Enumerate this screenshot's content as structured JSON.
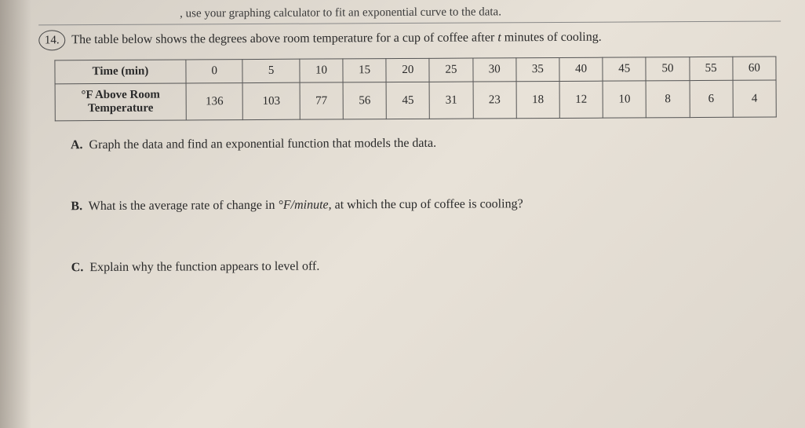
{
  "top_fragment": ", use your graphing calculator to fit an exponential curve to the data.",
  "question": {
    "number": "14.",
    "text_before_it": "The table below shows the degrees above room temperature for a cup of coffee after ",
    "italic_var": "t",
    "text_after_it": " minutes of cooling."
  },
  "table": {
    "row1_header": "Time (min)",
    "row2_header_line1": "°F Above Room",
    "row2_header_line2": "Temperature",
    "time_values": [
      "0",
      "5",
      "10",
      "15",
      "20",
      "25",
      "30",
      "35",
      "40",
      "45",
      "50",
      "55",
      "60"
    ],
    "temp_values": [
      "136",
      "103",
      "77",
      "56",
      "45",
      "31",
      "23",
      "18",
      "12",
      "10",
      "8",
      "6",
      "4"
    ],
    "col_count": 13
  },
  "parts": {
    "A": {
      "label": "A.",
      "text": "Graph the data and find an exponential function that models the data."
    },
    "B": {
      "label": "B.",
      "text_before": "What is the average rate of change in ",
      "unit": "°F/minute",
      "text_after": ", at which the cup of coffee is cooling?"
    },
    "C": {
      "label": "C.",
      "text": "Explain why the function appears to level off."
    }
  }
}
